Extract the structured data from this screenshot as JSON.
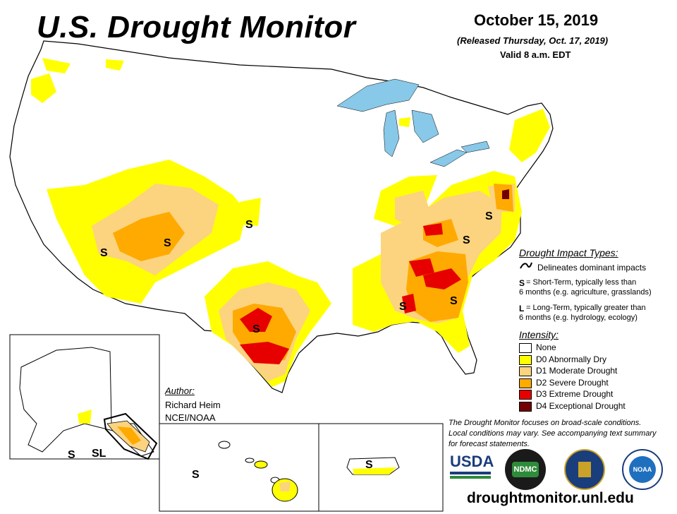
{
  "header": {
    "title": "U.S. Drought Monitor",
    "date": "October 15, 2019",
    "released": "(Released Thursday, Oct. 17, 2019)",
    "valid": "Valid 8 a.m. EDT"
  },
  "impact_types": {
    "heading": "Drought Impact Types:",
    "delineates": "Delineates dominant impacts",
    "short_term_key": "S",
    "short_term_text_1": "= Short-Term, typically less than",
    "short_term_text_2": "6 months (e.g. agriculture, grasslands)",
    "long_term_key": "L",
    "long_term_text_1": "= Long-Term, typically greater than",
    "long_term_text_2": "6 months (e.g. hydrology, ecology)"
  },
  "intensity": {
    "heading": "Intensity:",
    "levels": [
      {
        "label": "None",
        "color": "#ffffff"
      },
      {
        "label": "D0 Abnormally Dry",
        "color": "#ffff00"
      },
      {
        "label": "D1 Moderate Drought",
        "color": "#fcd37f"
      },
      {
        "label": "D2 Severe Drought",
        "color": "#ffaa00"
      },
      {
        "label": "D3 Extreme Drought",
        "color": "#e60000"
      },
      {
        "label": "D4 Exceptional Drought",
        "color": "#730000"
      }
    ]
  },
  "author": {
    "heading": "Author:",
    "name": "Richard Heim",
    "org": "NCEI/NOAA"
  },
  "note": {
    "line1": "The Drought Monitor focuses on broad-scale conditions.",
    "line2": "Local conditions may vary. See accompanying text summary",
    "line3": "for forecast statements."
  },
  "map_labels": {
    "s": "S",
    "sl": "SL"
  },
  "logos": {
    "usda": "USDA",
    "ndmc": "NDMC",
    "noaa": "NOAA"
  },
  "url": "droughtmonitor.unl.edu"
}
